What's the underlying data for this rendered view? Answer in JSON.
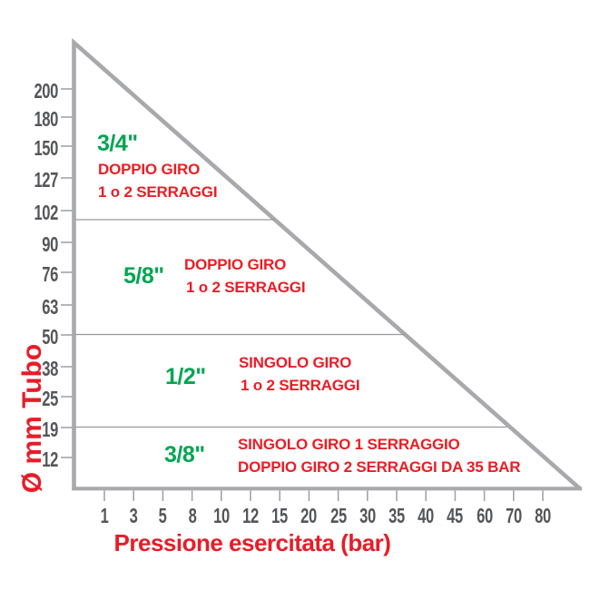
{
  "chart_data": {
    "type": "area",
    "subtype": "triangular zone diagram (clamp size vs hose diameter and working pressure)",
    "title": "",
    "xlabel": "Pressione esercitata (bar)",
    "ylabel": "Ø mm Tubo",
    "x_tick_labels": [
      "1",
      "3",
      "5",
      "8",
      "10",
      "12",
      "15",
      "20",
      "25",
      "30",
      "35",
      "40",
      "45",
      "60",
      "70",
      "80"
    ],
    "y_tick_labels": [
      "200",
      "180",
      "150",
      "127",
      "102",
      "90",
      "76",
      "63",
      "50",
      "38",
      "25",
      "19",
      "12"
    ],
    "boundary_line": {
      "description": "diagonal usage-limit line from above 200 mm at 1 bar down to about 12 mm at 80 bar",
      "start": {
        "x": "1 bar",
        "y": "above 200 mm"
      },
      "end": {
        "x": "80 bar",
        "y": "about 12 mm"
      }
    },
    "zone_dividers_mm": [
      102,
      50,
      19
    ],
    "zones": [
      {
        "size": "3/4\"",
        "y_band_mm": "102 to 200+",
        "lines": [
          "DOPPIO GIRO",
          "1 o 2 SERRAGGI"
        ]
      },
      {
        "size": "5/8\"",
        "y_band_mm": "50 to 102",
        "lines": [
          "DOPPIO GIRO",
          "1 o 2 SERRAGGI"
        ]
      },
      {
        "size": "1/2\"",
        "y_band_mm": "19 to 50",
        "lines": [
          "SINGOLO GIRO",
          "1 o 2 SERRAGGI"
        ]
      },
      {
        "size": "3/8\"",
        "y_band_mm": "below 19",
        "lines": [
          "SINGOLO GIRO 1 SERRAGGIO",
          "DOPPIO GIRO 2 SERRAGGI DA 35 BAR"
        ]
      }
    ],
    "legend": "none",
    "grid": "off",
    "colors": {
      "size_green": "#00a651",
      "text_red": "#ec1c24",
      "axis_gray": "#a7a9ac",
      "divider_gray": "#97999c",
      "tick_text_gray": "#54565a"
    }
  }
}
